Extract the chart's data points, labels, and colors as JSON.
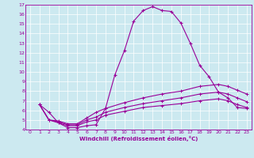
{
  "xlabel": "Windchill (Refroidissement éolien,°C)",
  "ylabel": "",
  "bg_color": "#cce9f0",
  "line_color": "#990099",
  "xlim": [
    -0.5,
    23.5
  ],
  "ylim": [
    4,
    17
  ],
  "xticks": [
    0,
    1,
    2,
    3,
    4,
    5,
    6,
    7,
    8,
    9,
    10,
    11,
    12,
    13,
    14,
    15,
    16,
    17,
    18,
    19,
    20,
    21,
    22,
    23
  ],
  "yticks": [
    4,
    5,
    6,
    7,
    8,
    9,
    10,
    11,
    12,
    13,
    14,
    15,
    16,
    17
  ],
  "line1_x": [
    1,
    2,
    3,
    4,
    5,
    6,
    7,
    8,
    9,
    10,
    11,
    12,
    13,
    14,
    15,
    16,
    17,
    18,
    19,
    20,
    21,
    22,
    23
  ],
  "line1_y": [
    6.6,
    5.8,
    4.7,
    4.2,
    4.2,
    4.4,
    4.5,
    6.2,
    9.7,
    12.2,
    15.3,
    16.4,
    16.8,
    16.4,
    16.3,
    15.1,
    13.0,
    10.7,
    9.5,
    7.9,
    7.3,
    6.3,
    6.2
  ],
  "line2_x": [
    1,
    2,
    3,
    4,
    5,
    6,
    7,
    8,
    10,
    12,
    14,
    16,
    18,
    20,
    21,
    22,
    23
  ],
  "line2_y": [
    6.6,
    5.0,
    4.9,
    4.6,
    4.6,
    5.2,
    5.8,
    6.2,
    6.8,
    7.3,
    7.7,
    8.0,
    8.5,
    8.7,
    8.5,
    8.1,
    7.7
  ],
  "line3_x": [
    1,
    2,
    3,
    4,
    5,
    6,
    7,
    8,
    10,
    12,
    14,
    16,
    18,
    20,
    21,
    22,
    23
  ],
  "line3_y": [
    6.6,
    5.0,
    4.8,
    4.5,
    4.5,
    5.0,
    5.3,
    5.8,
    6.3,
    6.7,
    7.0,
    7.3,
    7.7,
    7.9,
    7.7,
    7.3,
    6.9
  ],
  "line4_x": [
    1,
    2,
    3,
    4,
    5,
    6,
    7,
    8,
    10,
    12,
    14,
    16,
    18,
    20,
    21,
    22,
    23
  ],
  "line4_y": [
    6.6,
    5.0,
    4.7,
    4.4,
    4.4,
    4.8,
    5.0,
    5.5,
    5.9,
    6.3,
    6.5,
    6.7,
    7.0,
    7.2,
    7.0,
    6.6,
    6.3
  ],
  "tick_fontsize": 4.5,
  "xlabel_fontsize": 5.0,
  "grid_color": "#ffffff",
  "spine_color": "#990099"
}
